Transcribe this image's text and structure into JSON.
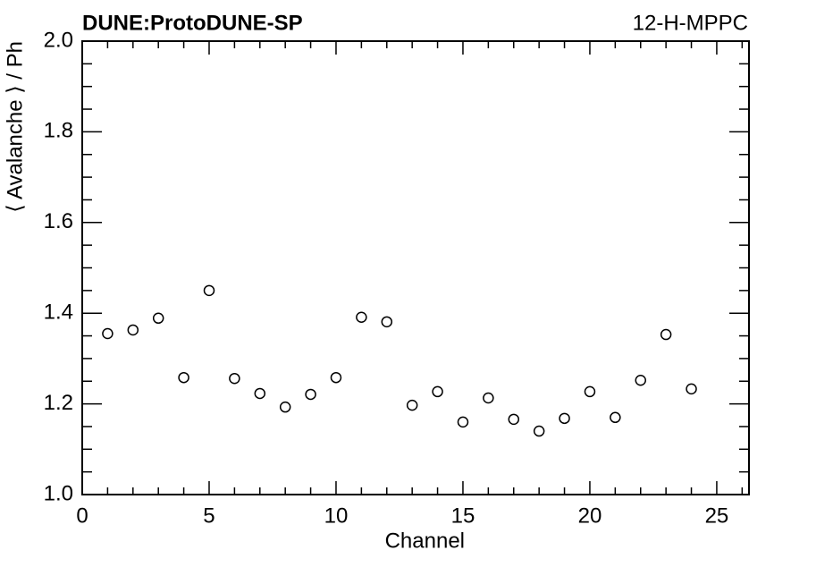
{
  "chart_data": {
    "type": "scatter",
    "title": "DUNE:ProtoDUNE-SP",
    "subtitle": "12-H-MPPC",
    "x_label": "Channel",
    "y_label": "⟨ Avalanche ⟩ / Ph",
    "x": [
      1,
      2,
      3,
      4,
      5,
      6,
      7,
      8,
      9,
      10,
      11,
      12,
      13,
      14,
      15,
      16,
      17,
      18,
      19,
      20,
      21,
      22,
      23,
      24
    ],
    "values": [
      1.355,
      1.363,
      1.389,
      1.258,
      1.45,
      1.256,
      1.223,
      1.193,
      1.221,
      1.258,
      1.391,
      1.381,
      1.197,
      1.227,
      1.16,
      1.213,
      1.166,
      1.14,
      1.168,
      1.227,
      1.17,
      1.252,
      1.353,
      1.233
    ],
    "color": "#000000",
    "xlim": [
      0,
      26.27
    ],
    "xticks": [
      0,
      5,
      10,
      15,
      20,
      25
    ],
    "xminorticks": [
      1,
      2,
      3,
      4,
      6,
      7,
      8,
      9,
      11,
      12,
      13,
      14,
      16,
      17,
      18,
      19,
      21,
      22,
      23,
      24,
      26
    ],
    "ylim": [
      1,
      2
    ],
    "yticks": [
      {
        "value": 1,
        "label": "1.0"
      },
      1.2,
      1.4,
      1.6,
      1.8,
      {
        "value": 2,
        "label": "2.0"
      }
    ],
    "yminorticks": [
      1.05,
      1.1,
      1.15,
      1.25,
      1.3,
      1.35,
      1.45,
      1.5,
      1.55,
      1.65,
      1.7,
      1.75,
      1.85,
      1.9,
      1.95
    ],
    "grid": false
  }
}
